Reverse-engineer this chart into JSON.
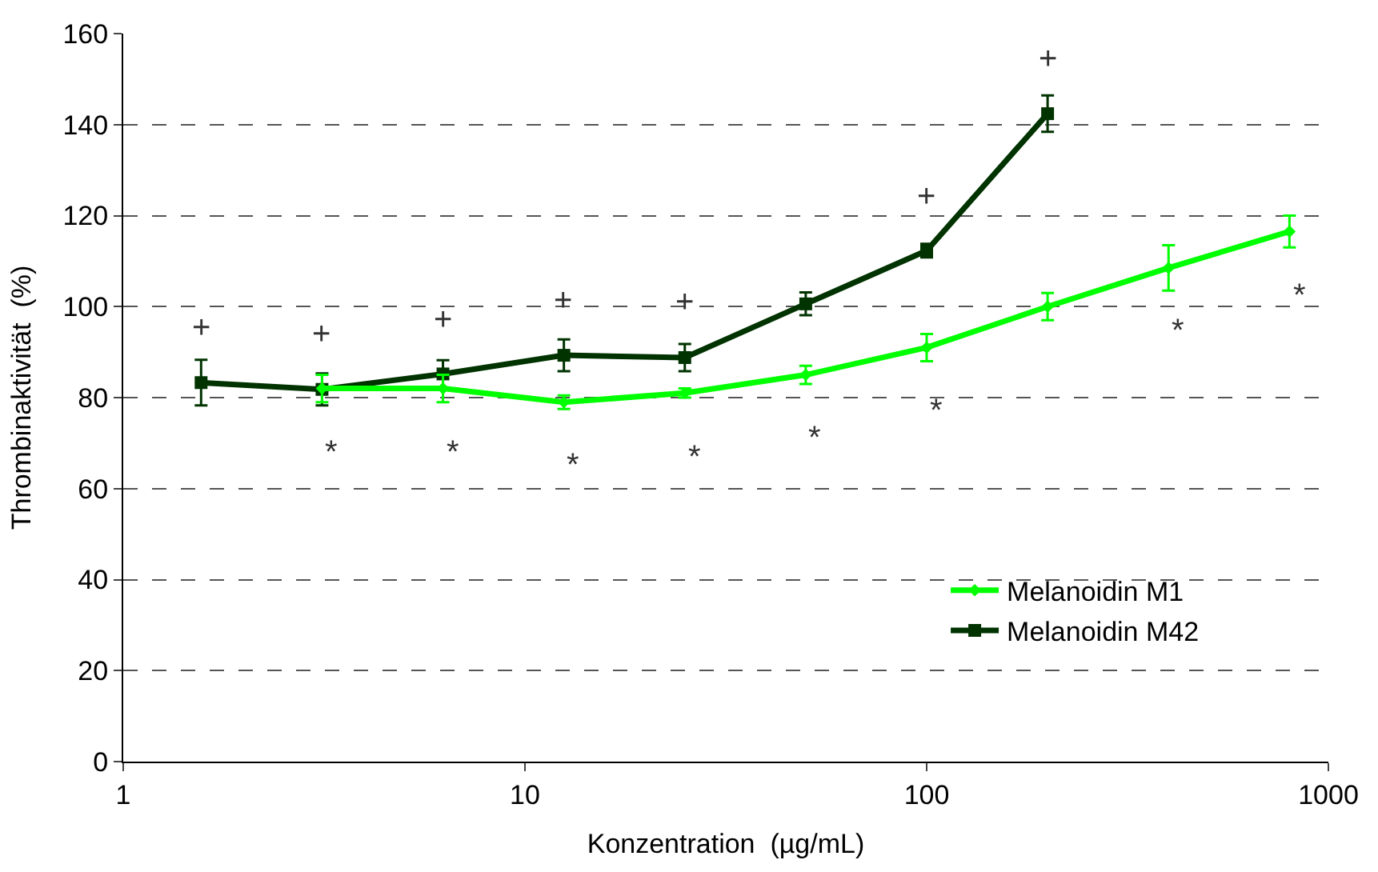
{
  "chart_data": {
    "type": "line",
    "xlabel": "Konzentration  (µg/mL)",
    "ylabel": "Thrombinaktivität  (%)",
    "log": "x",
    "xlim": [
      1,
      1000
    ],
    "xticks": [
      1,
      10,
      100,
      1000
    ],
    "ylim": [
      0,
      160
    ],
    "yticks": [
      0,
      20,
      40,
      60,
      80,
      100,
      120,
      140,
      160
    ],
    "grid": "y",
    "legend": "bottom right",
    "line_style": "solid",
    "series": [
      {
        "name": "Melanoidin M1",
        "color": "#00ff00",
        "marker": "diamond",
        "x": [
          3.125,
          6.25,
          12.5,
          25,
          50,
          100,
          200,
          400,
          800
        ],
        "values": [
          82,
          82,
          79,
          81,
          85,
          91,
          100,
          108.5,
          116.5
        ],
        "errors": [
          3,
          3,
          1.5,
          1,
          2,
          3,
          3,
          5,
          3.5
        ]
      },
      {
        "name": "Melanoidin M42",
        "color": "#003300",
        "marker": "square",
        "x": [
          1.5625,
          3.125,
          6.25,
          12.5,
          25,
          50,
          100,
          200
        ],
        "values": [
          83.3,
          81.8,
          85.2,
          89.3,
          88.8,
          100.6,
          112.3,
          142.4
        ],
        "errors": [
          5,
          3.5,
          3,
          3.5,
          3,
          2.5,
          1.5,
          4
        ]
      }
    ],
    "annotations": [
      {
        "text": "+",
        "x": 1.5625,
        "y": 83.3
      },
      {
        "text": "+",
        "x": 3.125,
        "y": 81.8
      },
      {
        "text": "+",
        "x": 6.25,
        "y": 85.2
      },
      {
        "text": "+",
        "x": 12.5,
        "y": 89.3
      },
      {
        "text": "+",
        "x": 25,
        "y": 88.8
      },
      {
        "text": "+",
        "x": 100,
        "y": 112.3
      },
      {
        "text": "+",
        "x": 200,
        "y": 142.4
      },
      {
        "text": "*",
        "x": 3.125,
        "y": 82
      },
      {
        "text": "*",
        "x": 6.25,
        "y": 82
      },
      {
        "text": "*",
        "x": 12.5,
        "y": 79
      },
      {
        "text": "*",
        "x": 25,
        "y": 81
      },
      {
        "text": "*",
        "x": 50,
        "y": 85
      },
      {
        "text": "*",
        "x": 100,
        "y": 91
      },
      {
        "text": "*",
        "x": 400,
        "y": 108.5
      },
      {
        "text": "*",
        "x": 800,
        "y": 116.5
      }
    ]
  }
}
